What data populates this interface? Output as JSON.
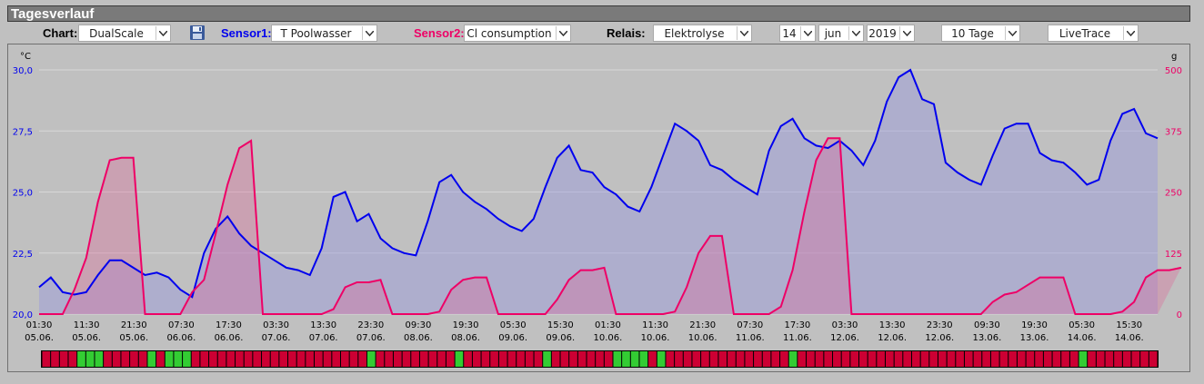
{
  "panel_title": "Tagesverlauf",
  "controls": {
    "chart_label": "Chart:",
    "chart_value": "DualScale",
    "sensor1_label": "Sensor1:",
    "sensor1_value": "T Poolwasser",
    "sensor2_label": "Sensor2:",
    "sensor2_value": "Cl consumption",
    "relais_label": "Relais:",
    "relais_value": "Elektrolyse",
    "day_value": "14",
    "month_value": "jun",
    "year_value": "2019",
    "range_value": "10 Tage",
    "mode_value": "LiveTrace"
  },
  "colors": {
    "sensor1": "#0000ee",
    "sensor2": "#ee0066",
    "relay_on": "#33cc33",
    "relay_off": "#cc0033"
  },
  "chart_data": {
    "type": "line",
    "left_unit": "°C",
    "right_unit": "g",
    "left_ticks": [
      "30,0",
      "27,5",
      "25,0",
      "22,5",
      "20,0"
    ],
    "right_ticks": [
      "500",
      "375",
      "250",
      "125",
      "0"
    ],
    "left_ylim": [
      20,
      30
    ],
    "right_ylim": [
      0,
      500
    ],
    "x_tick_labels": [
      [
        "01:30",
        "05.06."
      ],
      [
        "11:30",
        "05.06."
      ],
      [
        "21:30",
        "05.06."
      ],
      [
        "07:30",
        "06.06."
      ],
      [
        "17:30",
        "06.06."
      ],
      [
        "03:30",
        "07.06."
      ],
      [
        "13:30",
        "07.06."
      ],
      [
        "23:30",
        "07.06."
      ],
      [
        "09:30",
        "08.06."
      ],
      [
        "19:30",
        "08.06."
      ],
      [
        "05:30",
        "09.06."
      ],
      [
        "15:30",
        "09.06."
      ],
      [
        "01:30",
        "10.06."
      ],
      [
        "11:30",
        "10.06."
      ],
      [
        "21:30",
        "10.06."
      ],
      [
        "07:30",
        "11.06."
      ],
      [
        "17:30",
        "11.06."
      ],
      [
        "03:30",
        "12.06."
      ],
      [
        "13:30",
        "12.06."
      ],
      [
        "23:30",
        "12.06."
      ],
      [
        "09:30",
        "13.06."
      ],
      [
        "19:30",
        "13.06."
      ],
      [
        "05:30",
        "14.06."
      ],
      [
        "15:30",
        "14.06."
      ]
    ],
    "series": [
      {
        "values": [
          21.1,
          21.5,
          20.9,
          20.8,
          20.9,
          21.6,
          22.2,
          22.2,
          21.9,
          21.6,
          21.7,
          21.5,
          21.0,
          20.7,
          22.5,
          23.5,
          24.0,
          23.3,
          22.8,
          22.5,
          22.2,
          21.9,
          21.8,
          21.6,
          22.7,
          24.8,
          25.0,
          23.8,
          24.1,
          23.1,
          22.7,
          22.5,
          22.4,
          23.8,
          25.4,
          25.7,
          25.0,
          24.6,
          24.3,
          23.9,
          23.6,
          23.4,
          23.9,
          25.2,
          26.4,
          26.9,
          25.9,
          25.8,
          25.2,
          24.9,
          24.4,
          24.2,
          25.2,
          26.5,
          27.8,
          27.5,
          27.1,
          26.1,
          25.9,
          25.5,
          25.2,
          24.9,
          26.7,
          27.7,
          28.0,
          27.2,
          26.9,
          26.8,
          27.1,
          26.7,
          26.1,
          27.1,
          28.7,
          29.7,
          30.0,
          28.8,
          28.6,
          26.2,
          25.8,
          25.5,
          25.3,
          26.5,
          27.6,
          27.8,
          27.8,
          26.6,
          26.3,
          26.2,
          25.8,
          25.3,
          25.5,
          27.1,
          28.2,
          28.4,
          27.4,
          27.2
        ],
        "area": true
      },
      {
        "values": [
          0,
          0,
          0,
          50,
          115,
          230,
          315,
          320,
          320,
          0,
          0,
          0,
          0,
          45,
          70,
          165,
          265,
          340,
          355,
          0,
          0,
          0,
          0,
          0,
          0,
          10,
          55,
          65,
          65,
          70,
          0,
          0,
          0,
          0,
          5,
          50,
          70,
          75,
          75,
          0,
          0,
          0,
          0,
          0,
          30,
          70,
          90,
          90,
          95,
          0,
          0,
          0,
          0,
          0,
          5,
          55,
          125,
          160,
          160,
          0,
          0,
          0,
          0,
          15,
          90,
          210,
          315,
          360,
          360,
          0,
          0,
          0,
          0,
          0,
          0,
          0,
          0,
          0,
          0,
          0,
          0,
          25,
          40,
          45,
          60,
          75,
          75,
          75,
          0,
          0,
          0,
          0,
          5,
          25,
          75,
          90,
          90,
          95
        ],
        "area": true
      }
    ],
    "relay_states": [
      0,
      0,
      0,
      0,
      1,
      1,
      1,
      0,
      0,
      0,
      0,
      0,
      1,
      0,
      1,
      1,
      1,
      0,
      0,
      0,
      0,
      0,
      0,
      0,
      0,
      0,
      0,
      0,
      0,
      0,
      0,
      0,
      0,
      0,
      0,
      0,
      0,
      1,
      0,
      0,
      0,
      0,
      0,
      0,
      0,
      0,
      0,
      1,
      0,
      0,
      0,
      0,
      0,
      0,
      0,
      0,
      0,
      1,
      0,
      0,
      0,
      0,
      0,
      0,
      0,
      1,
      1,
      1,
      1,
      0,
      1,
      0,
      0,
      0,
      0,
      0,
      0,
      0,
      0,
      0,
      0,
      0,
      0,
      0,
      0,
      1,
      0,
      0,
      0,
      0,
      0,
      0,
      0,
      0,
      0,
      0,
      0,
      0,
      0,
      0,
      0,
      0,
      0,
      0,
      0,
      0,
      0,
      0,
      0,
      0,
      0,
      0,
      0,
      0,
      0,
      0,
      0,
      0,
      1,
      0,
      0,
      0,
      0,
      0,
      0,
      0,
      0
    ],
    "grid": true
  }
}
